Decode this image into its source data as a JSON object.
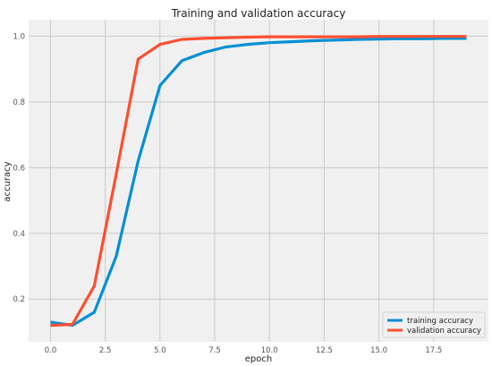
{
  "chart_data": {
    "type": "line",
    "title": "Training and validation accuracy",
    "xlabel": "epoch",
    "ylabel": "accuracy",
    "xlim": [
      -1,
      20
    ],
    "ylim": [
      0.07,
      1.05
    ],
    "xticks": [
      0.0,
      2.5,
      5.0,
      7.5,
      10.0,
      12.5,
      15.0,
      17.5
    ],
    "xtick_labels": [
      "0.0",
      "2.5",
      "5.0",
      "7.5",
      "10.0",
      "12.5",
      "15.0",
      "17.5"
    ],
    "yticks": [
      0.2,
      0.4,
      0.6,
      0.8,
      1.0
    ],
    "ytick_labels": [
      "0.2",
      "0.4",
      "0.6",
      "0.8",
      "1.0"
    ],
    "grid": true,
    "legend_position": "lower-right",
    "background": "#f0f0f0",
    "grid_color": "#cbcbcb",
    "x": [
      0,
      1,
      2,
      3,
      4,
      5,
      6,
      7,
      8,
      9,
      10,
      11,
      12,
      13,
      14,
      15,
      16,
      17,
      18,
      19
    ],
    "series": [
      {
        "name": "training accuracy",
        "color": "#008fd5",
        "values": [
          0.13,
          0.12,
          0.16,
          0.33,
          0.62,
          0.85,
          0.925,
          0.95,
          0.967,
          0.975,
          0.98,
          0.983,
          0.986,
          0.988,
          0.99,
          0.991,
          0.992,
          0.992,
          0.993,
          0.993
        ]
      },
      {
        "name": "validation accuracy",
        "color": "#fc4f30",
        "values": [
          0.12,
          0.123,
          0.24,
          0.58,
          0.93,
          0.975,
          0.99,
          0.993,
          0.995,
          0.997,
          0.998,
          0.998,
          0.998,
          0.998,
          0.998,
          0.999,
          0.999,
          0.999,
          0.999,
          0.999
        ]
      }
    ]
  }
}
